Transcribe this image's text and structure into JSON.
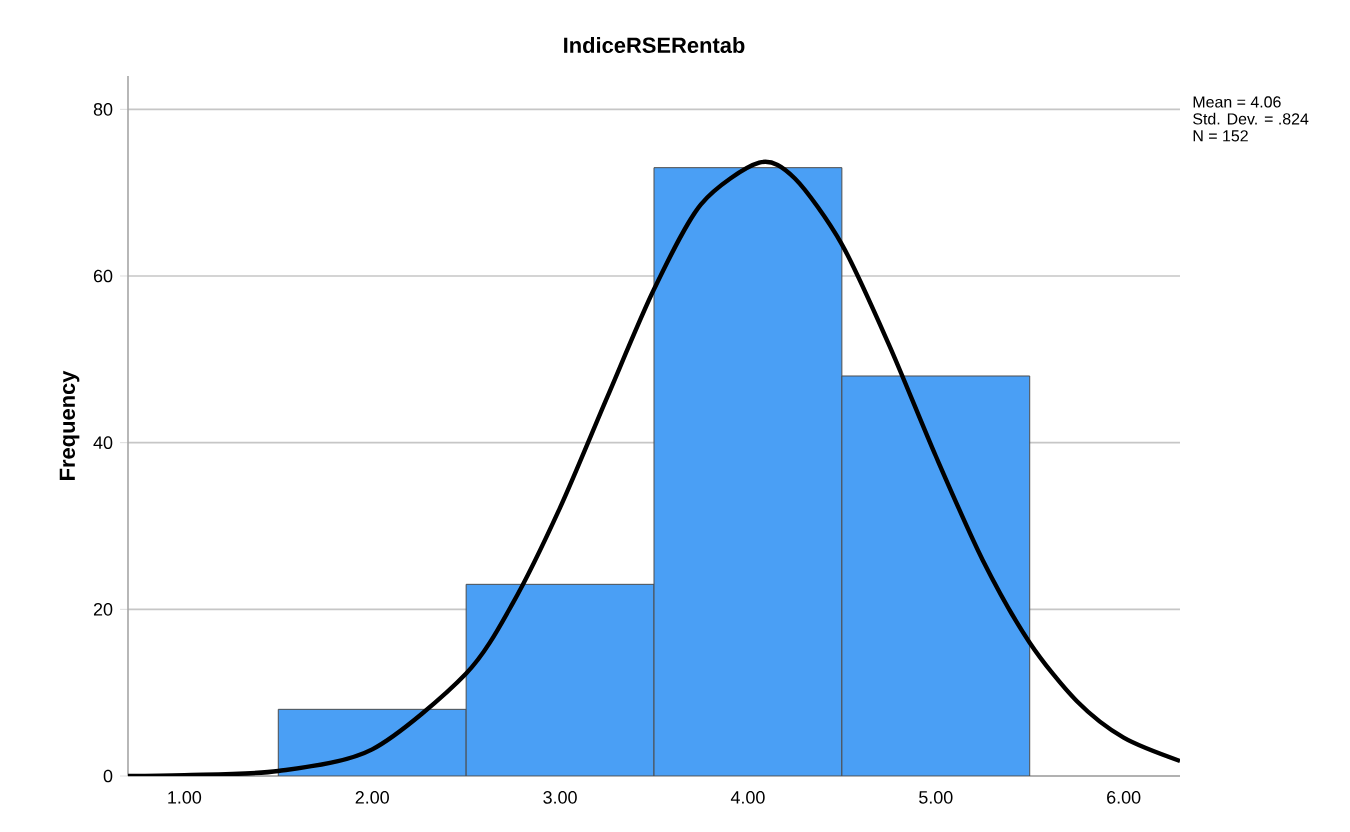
{
  "chart_data": {
    "type": "histogram",
    "title": "IndiceRSERentab",
    "ylabel": "Frequency",
    "bins": [
      1.5,
      2.5,
      3.5,
      4.5,
      5.5
    ],
    "values": [
      8,
      23,
      73,
      48
    ],
    "color": "#4a9ff5",
    "series": [
      {
        "type": "line",
        "color": "#000000",
        "x": [
          0.7,
          1.0,
          1.5,
          2.0,
          2.5,
          2.75,
          3.0,
          3.25,
          3.5,
          3.75,
          4.06,
          4.25,
          4.5,
          4.75,
          5.0,
          5.25,
          5.5,
          5.75,
          6.0,
          6.3
        ],
        "values": [
          0.0,
          0.1,
          0.6,
          3.2,
          12.3,
          20.8,
          32.2,
          45.4,
          58.4,
          68.6,
          73.6,
          71.7,
          63.8,
          51.8,
          38.4,
          25.9,
          16.0,
          9.0,
          4.6,
          1.8
        ]
      }
    ],
    "xlim": [
      0.7,
      6.3
    ],
    "ylim": [
      0,
      84
    ],
    "xticks": [
      {
        "value": 1,
        "label": "1.00"
      },
      {
        "value": 2,
        "label": "2.00"
      },
      {
        "value": 3,
        "label": "3.00"
      },
      {
        "value": 4,
        "label": "4.00"
      },
      {
        "value": 5,
        "label": "5.00"
      },
      {
        "value": 6,
        "label": "6.00"
      }
    ],
    "yticks": [
      0,
      20,
      40,
      60,
      80
    ],
    "grid": "y",
    "annotations": [
      "Mean = 4.06",
      "Std. Dev. = .824",
      "N = 152"
    ]
  }
}
